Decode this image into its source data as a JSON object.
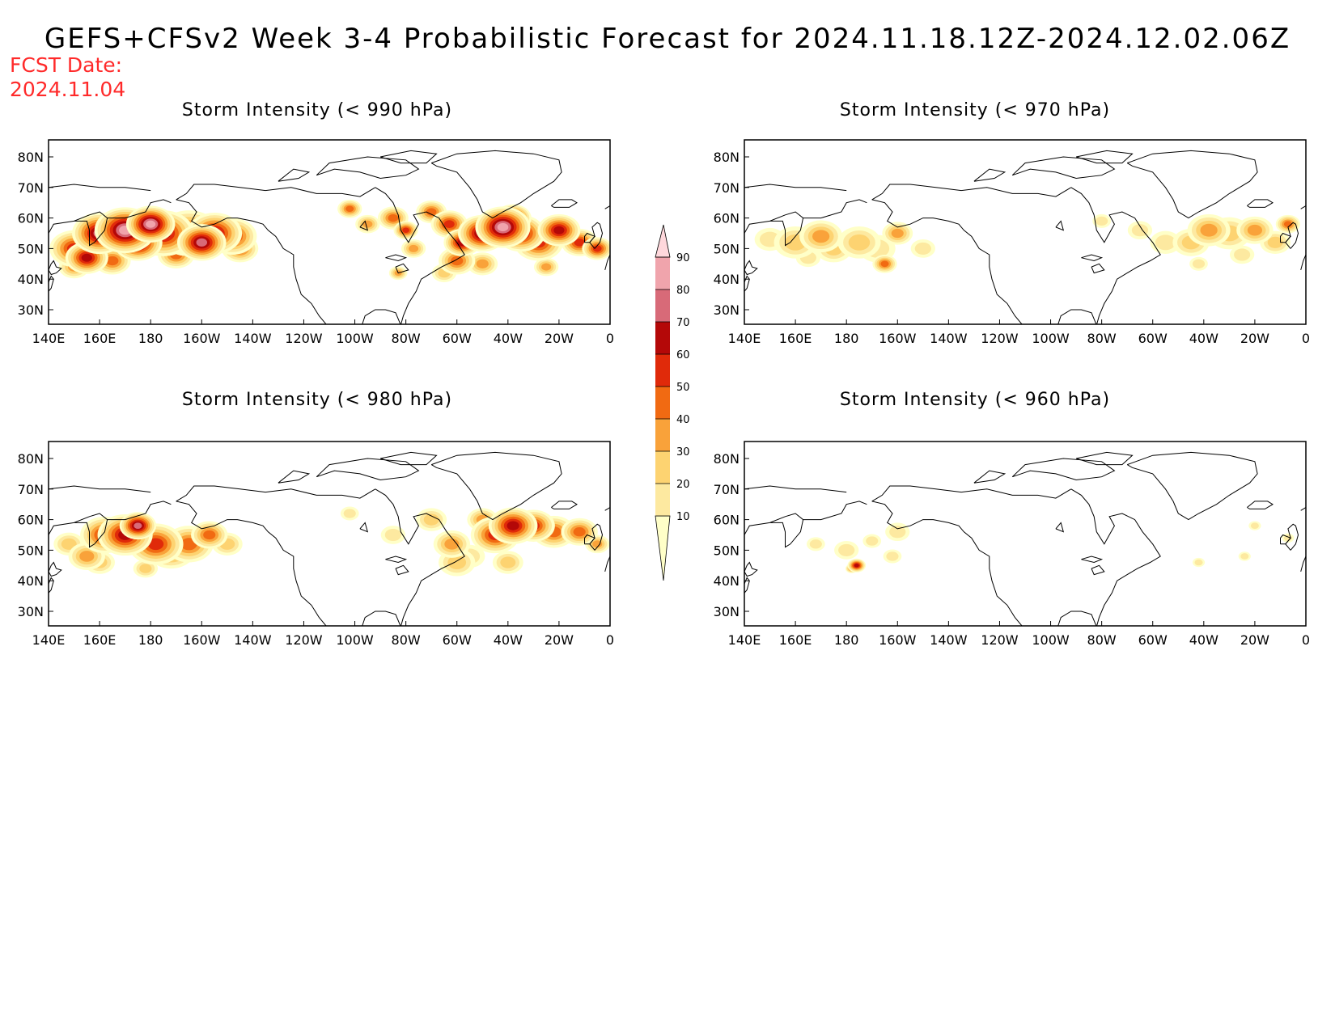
{
  "title": "GEFS+CFSv2 Week 3-4 Probabilistic Forecast for 2024.11.18.12Z-2024.12.02.06Z",
  "fcst_date_label": "FCST Date:",
  "fcst_date_value": "2024.11.04",
  "x_ticks": [
    "140E",
    "160E",
    "180",
    "160W",
    "140W",
    "120W",
    "100W",
    "80W",
    "60W",
    "40W",
    "20W",
    "0"
  ],
  "y_ticks": [
    "80N",
    "70N",
    "60N",
    "50N",
    "40N",
    "30N"
  ],
  "colorbar": {
    "levels": [
      "10",
      "20",
      "30",
      "40",
      "50",
      "60",
      "70",
      "80",
      "90"
    ],
    "colors": [
      "#ffffc8",
      "#fde9a0",
      "#fdd371",
      "#f9a23a",
      "#f16a12",
      "#e02a0a",
      "#b40808",
      "#d86a78",
      "#f0a4ac",
      "#ffd8dc"
    ]
  },
  "panels": [
    {
      "id": "p990",
      "title": "Storm Intensity (< 990 hPa)"
    },
    {
      "id": "p970",
      "title": "Storm Intensity (< 970 hPa)"
    },
    {
      "id": "p980",
      "title": "Storm Intensity (< 980 hPa)"
    },
    {
      "id": "p960",
      "title": "Storm Intensity (< 960 hPa)"
    }
  ]
}
